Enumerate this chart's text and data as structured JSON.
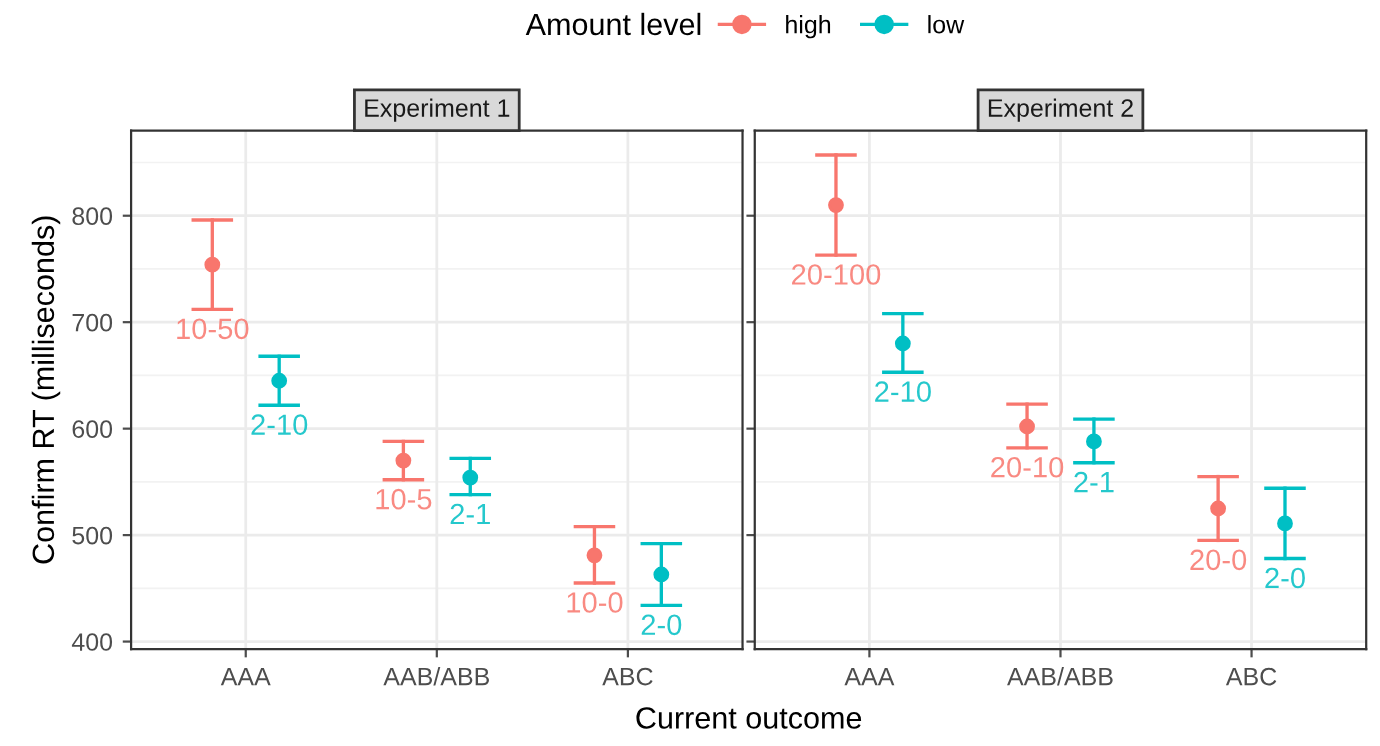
{
  "chart_data": [
    {
      "type": "scatter",
      "title": "Experiment 1",
      "xlabel": "Current outcome",
      "ylabel": "Confirm RT (milliseconds)",
      "legend_title": "Amount level",
      "legend": "top",
      "grid": true,
      "marker": "circle",
      "categories": [
        "AAA",
        "AAB/ABB",
        "ABC"
      ],
      "ylim": [
        393,
        880
      ],
      "yticks": [
        400,
        500,
        600,
        700,
        800
      ],
      "series": [
        {
          "name": "high",
          "color": "#f8766d",
          "values": [
            754,
            570,
            481
          ],
          "errors": [
            [
              712,
              796
            ],
            [
              552,
              588
            ],
            [
              455,
              508
            ]
          ],
          "value_labels": [
            "10-50",
            "10-5",
            "10-0"
          ]
        },
        {
          "name": "low",
          "color": "#00bfc4",
          "values": [
            645,
            554,
            463
          ],
          "errors": [
            [
              622,
              668
            ],
            [
              538,
              572
            ],
            [
              434,
              492
            ]
          ],
          "value_labels": [
            "2-10",
            "2-1",
            "2-0"
          ]
        }
      ]
    },
    {
      "type": "scatter",
      "title": "Experiment 2",
      "grid": true,
      "marker": "circle",
      "tick_labels": "x",
      "categories": [
        "AAA",
        "AAB/ABB",
        "ABC"
      ],
      "ylim": [
        393,
        880
      ],
      "yticks": [
        400,
        500,
        600,
        700,
        800
      ],
      "series": [
        {
          "name": "high",
          "color": "#f8766d",
          "values": [
            810,
            602,
            525
          ],
          "errors": [
            [
              763,
              857
            ],
            [
              582,
              623
            ],
            [
              495,
              555
            ]
          ],
          "value_labels": [
            "20-100",
            "20-10",
            "20-0"
          ]
        },
        {
          "name": "low",
          "color": "#00bfc4",
          "values": [
            680,
            588,
            511
          ],
          "errors": [
            [
              653,
              708
            ],
            [
              568,
              609
            ],
            [
              478,
              544
            ]
          ],
          "value_labels": [
            "2-10",
            "2-1",
            "2-0"
          ]
        }
      ]
    }
  ]
}
